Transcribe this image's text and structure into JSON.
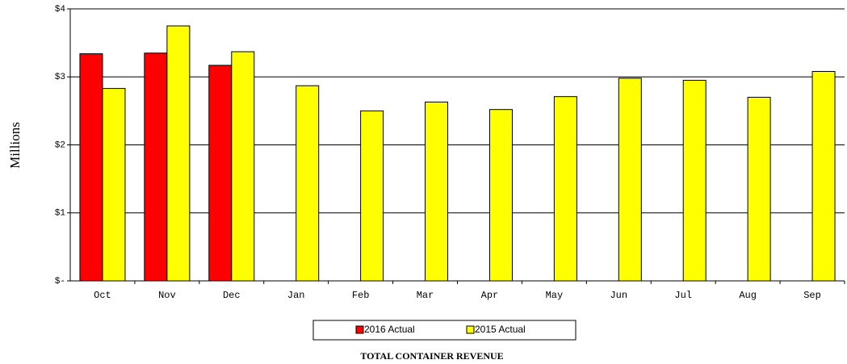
{
  "chart_data": {
    "type": "bar",
    "title": "TOTAL CONTAINER REVENUE",
    "y_label": "Millions",
    "categories": [
      "Oct",
      "Nov",
      "Dec",
      "Jan",
      "Feb",
      "Mar",
      "Apr",
      "May",
      "Jun",
      "Jul",
      "Aug",
      "Sep"
    ],
    "series": [
      {
        "name": "2016 Actual",
        "color": "#ff0000",
        "values": [
          3.34,
          3.35,
          3.17,
          null,
          null,
          null,
          null,
          null,
          null,
          null,
          null,
          null
        ]
      },
      {
        "name": "2015 Actual",
        "color": "#ffff00",
        "values": [
          2.83,
          3.75,
          3.37,
          2.87,
          2.5,
          2.63,
          2.52,
          2.71,
          2.98,
          2.95,
          2.7,
          3.08
        ]
      }
    ],
    "ylim": [
      0,
      4
    ],
    "yticks": [
      {
        "value": 0,
        "label": "$-"
      },
      {
        "value": 1,
        "label": "$1"
      },
      {
        "value": 2,
        "label": "$2"
      },
      {
        "value": 3,
        "label": "$3"
      },
      {
        "value": 4,
        "label": "$4"
      }
    ],
    "grid": true,
    "legend": "bottom"
  }
}
